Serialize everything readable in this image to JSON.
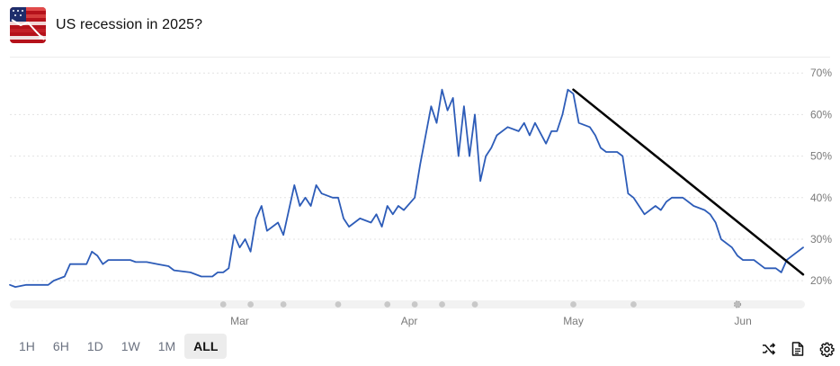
{
  "header": {
    "title": "US recession in 2025?"
  },
  "timeframes": [
    {
      "label": "1H",
      "active": false
    },
    {
      "label": "6H",
      "active": false
    },
    {
      "label": "1D",
      "active": false
    },
    {
      "label": "1W",
      "active": false
    },
    {
      "label": "1M",
      "active": false
    },
    {
      "label": "ALL",
      "active": true
    }
  ],
  "tools": {
    "shuffle": "shuffle-icon",
    "document": "document-icon",
    "settings": "gear-icon"
  },
  "colors": {
    "line": "#2d5cb8",
    "trend": "#000000",
    "grid": "#e3e3e3",
    "axis_text": "#7a7a7a"
  },
  "chart_data": {
    "type": "line",
    "title": "",
    "xlabel": "",
    "ylabel": "",
    "ylim": [
      17,
      72
    ],
    "y_ticks": [
      "20%",
      "30%",
      "40%",
      "50%",
      "60%",
      "70%"
    ],
    "x_ticks": [
      "Mar",
      "Apr",
      "May",
      "Jun"
    ],
    "grid": true,
    "series": [
      {
        "values": [
          [
            "2025-01-18",
            19
          ],
          [
            "2025-01-19",
            18.5
          ],
          [
            "2025-01-21",
            19
          ],
          [
            "2025-01-25",
            19
          ],
          [
            "2025-01-26",
            20
          ],
          [
            "2025-01-28",
            21
          ],
          [
            "2025-01-29",
            24
          ],
          [
            "2025-02-01",
            24
          ],
          [
            "2025-02-02",
            27
          ],
          [
            "2025-02-03",
            26
          ],
          [
            "2025-02-04",
            24
          ],
          [
            "2025-02-05",
            25
          ],
          [
            "2025-02-09",
            25
          ],
          [
            "2025-02-10",
            24.5
          ],
          [
            "2025-02-12",
            24.5
          ],
          [
            "2025-02-14",
            24
          ],
          [
            "2025-02-16",
            23.5
          ],
          [
            "2025-02-17",
            22.5
          ],
          [
            "2025-02-20",
            22
          ],
          [
            "2025-02-22",
            21
          ],
          [
            "2025-02-24",
            21
          ],
          [
            "2025-02-25",
            22
          ],
          [
            "2025-02-26",
            22
          ],
          [
            "2025-02-27",
            23
          ],
          [
            "2025-02-28",
            31
          ],
          [
            "2025-03-01",
            28
          ],
          [
            "2025-03-02",
            30
          ],
          [
            "2025-03-03",
            27
          ],
          [
            "2025-03-04",
            35
          ],
          [
            "2025-03-05",
            38
          ],
          [
            "2025-03-06",
            32
          ],
          [
            "2025-03-08",
            34
          ],
          [
            "2025-03-09",
            31
          ],
          [
            "2025-03-10",
            37
          ],
          [
            "2025-03-11",
            43
          ],
          [
            "2025-03-12",
            38
          ],
          [
            "2025-03-13",
            40
          ],
          [
            "2025-03-14",
            38
          ],
          [
            "2025-03-15",
            43
          ],
          [
            "2025-03-16",
            41
          ],
          [
            "2025-03-18",
            40
          ],
          [
            "2025-03-19",
            40
          ],
          [
            "2025-03-20",
            35
          ],
          [
            "2025-03-21",
            33
          ],
          [
            "2025-03-23",
            35
          ],
          [
            "2025-03-25",
            34
          ],
          [
            "2025-03-26",
            36
          ],
          [
            "2025-03-27",
            33
          ],
          [
            "2025-03-28",
            38
          ],
          [
            "2025-03-29",
            36
          ],
          [
            "2025-03-30",
            38
          ],
          [
            "2025-03-31",
            37
          ],
          [
            "2025-04-02",
            40
          ],
          [
            "2025-04-03",
            48
          ],
          [
            "2025-04-04",
            55
          ],
          [
            "2025-04-05",
            62
          ],
          [
            "2025-04-06",
            58
          ],
          [
            "2025-04-07",
            66
          ],
          [
            "2025-04-08",
            61
          ],
          [
            "2025-04-09",
            64
          ],
          [
            "2025-04-10",
            50
          ],
          [
            "2025-04-11",
            62
          ],
          [
            "2025-04-12",
            50
          ],
          [
            "2025-04-13",
            60
          ],
          [
            "2025-04-14",
            44
          ],
          [
            "2025-04-15",
            50
          ],
          [
            "2025-04-16",
            52
          ],
          [
            "2025-04-17",
            55
          ],
          [
            "2025-04-19",
            57
          ],
          [
            "2025-04-21",
            56
          ],
          [
            "2025-04-22",
            58
          ],
          [
            "2025-04-23",
            55
          ],
          [
            "2025-04-24",
            58
          ],
          [
            "2025-04-26",
            53
          ],
          [
            "2025-04-27",
            56
          ],
          [
            "2025-04-28",
            56
          ],
          [
            "2025-04-29",
            60
          ],
          [
            "2025-04-30",
            66
          ],
          [
            "2025-05-01",
            65
          ],
          [
            "2025-05-02",
            58
          ],
          [
            "2025-05-04",
            57
          ],
          [
            "2025-05-05",
            55
          ],
          [
            "2025-05-06",
            52
          ],
          [
            "2025-05-07",
            51
          ],
          [
            "2025-05-09",
            51
          ],
          [
            "2025-05-10",
            50
          ],
          [
            "2025-05-11",
            41
          ],
          [
            "2025-05-12",
            40
          ],
          [
            "2025-05-13",
            38
          ],
          [
            "2025-05-14",
            36
          ],
          [
            "2025-05-16",
            38
          ],
          [
            "2025-05-17",
            37
          ],
          [
            "2025-05-18",
            39
          ],
          [
            "2025-05-19",
            40
          ],
          [
            "2025-05-21",
            40
          ],
          [
            "2025-05-22",
            39
          ],
          [
            "2025-05-23",
            38
          ],
          [
            "2025-05-25",
            37
          ],
          [
            "2025-05-26",
            36
          ],
          [
            "2025-05-27",
            34
          ],
          [
            "2025-05-28",
            30
          ],
          [
            "2025-05-30",
            28
          ],
          [
            "2025-05-31",
            26
          ],
          [
            "2025-06-01",
            25
          ],
          [
            "2025-06-03",
            25
          ],
          [
            "2025-06-04",
            24
          ],
          [
            "2025-06-05",
            23
          ],
          [
            "2025-06-07",
            23
          ],
          [
            "2025-06-08",
            22
          ],
          [
            "2025-06-09",
            25
          ],
          [
            "2025-06-10",
            26
          ],
          [
            "2025-06-11",
            27
          ],
          [
            "2025-06-12",
            28
          ]
        ]
      }
    ],
    "annotations": [
      {
        "type": "trend_line",
        "from": [
          "2025-05-01",
          66
        ],
        "to": [
          "2025-06-12",
          21.5
        ]
      }
    ]
  }
}
